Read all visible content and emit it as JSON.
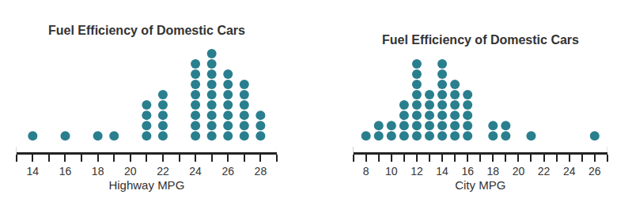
{
  "chart_data": [
    {
      "type": "dot",
      "title": "Fuel Efficiency of Domestic Cars",
      "x_label": "Highway MPG",
      "x": [
        14,
        16,
        18,
        19,
        21,
        22,
        24,
        25,
        26,
        27,
        28
      ],
      "values": [
        1,
        1,
        1,
        1,
        4,
        5,
        8,
        9,
        7,
        6,
        3
      ],
      "xlim": [
        13,
        29
      ],
      "xticks": [
        14,
        16,
        18,
        20,
        22,
        24,
        26,
        28
      ],
      "color": "#2a7f8e",
      "marker": "circle",
      "tick_labels": "x"
    },
    {
      "type": "dot",
      "title": "Fuel Efficiency of Domestic Cars",
      "x_label": "City MPG",
      "x": [
        8,
        9,
        10,
        11,
        12,
        13,
        14,
        15,
        16,
        18,
        19,
        21,
        26
      ],
      "values": [
        1,
        2,
        2,
        4,
        8,
        5,
        8,
        6,
        5,
        2,
        2,
        1,
        1
      ],
      "xlim": [
        7,
        27
      ],
      "xticks": [
        8,
        10,
        12,
        14,
        16,
        18,
        20,
        22,
        24,
        26
      ],
      "color": "#2a7f8e",
      "marker": "circle",
      "tick_labels": "x"
    }
  ]
}
